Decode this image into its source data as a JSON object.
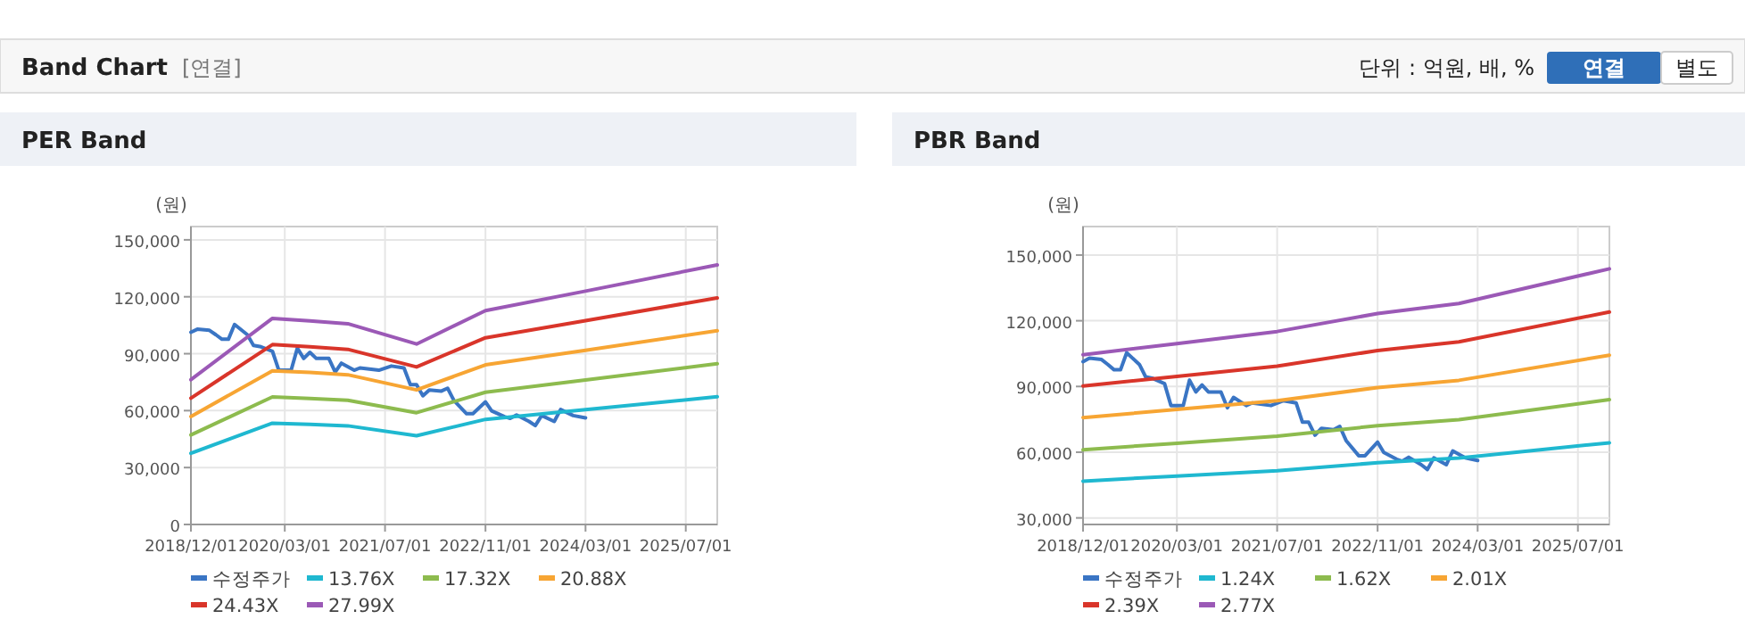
{
  "chart_data": [
    {
      "type": "other",
      "title": "Band Chart",
      "annotations": [
        "[연결]",
        "단위 : 억원, 배, %",
        "연결",
        "별도"
      ]
    },
    {
      "type": "line",
      "title": "PER Band",
      "ylabel": "(원)",
      "grid": true,
      "legend": "bottom",
      "xlim": [
        "2018-12-01",
        "2025-12-01"
      ],
      "ylim": [
        0,
        157000
      ],
      "xticks": [
        {
          "value": "2018-12-01",
          "label": "2018/12/01"
        },
        {
          "value": "2020-03-01",
          "label": "2020/03/01"
        },
        {
          "value": "2021-07-01",
          "label": "2021/07/01"
        },
        {
          "value": "2022-11-01",
          "label": "2022/11/01"
        },
        {
          "value": "2024-03-01",
          "label": "2024/03/01"
        },
        {
          "value": "2025-07-01",
          "label": "2025/07/01"
        }
      ],
      "yticks": [
        0,
        {
          "value": 30000,
          "label": "30,000"
        },
        {
          "value": 60000,
          "label": "60,000"
        },
        {
          "value": 90000,
          "label": "90,000"
        },
        {
          "value": 120000,
          "label": "120,000"
        },
        {
          "value": 150000,
          "label": "150,000"
        }
      ],
      "series": [
        {
          "name": "수정주가",
          "color": "#3a75c4",
          "x": [
            "2018-12",
            "2019-01",
            "2019-03",
            "2019-04",
            "2019-05",
            "2019-06",
            "2019-07",
            "2019-09",
            "2019-10",
            "2019-11",
            "2020-01",
            "2020-02",
            "2020-04",
            "2020-05",
            "2020-06",
            "2020-07",
            "2020-08",
            "2020-10",
            "2020-11",
            "2020-12",
            "2021-02",
            "2021-03",
            "2021-06",
            "2021-08",
            "2021-10",
            "2021-11",
            "2021-12",
            "2022-01",
            "2022-02",
            "2022-04",
            "2022-05",
            "2022-06",
            "2022-08",
            "2022-09",
            "2022-11",
            "2022-12",
            "2023-02",
            "2023-03",
            "2023-04",
            "2023-06",
            "2023-07",
            "2023-08",
            "2023-10",
            "2023-11",
            "2024-01",
            "2024-03"
          ],
          "values": [
            101300,
            102900,
            102300,
            100000,
            97600,
            97600,
            105400,
            100000,
            94400,
            93800,
            91300,
            81300,
            81300,
            92900,
            87500,
            90700,
            87500,
            87500,
            80300,
            85000,
            81300,
            82500,
            81300,
            83500,
            82500,
            73700,
            73700,
            67800,
            70900,
            70300,
            71800,
            65300,
            58400,
            58400,
            64600,
            59900,
            56800,
            55900,
            57700,
            54300,
            52100,
            57400,
            54300,
            60600,
            57400,
            56200
          ]
        },
        {
          "name": "13.76X",
          "color": "#1fb8d0",
          "x": [
            "2018-12-01",
            "2020-01-01",
            "2020-07-01",
            "2021-01-01",
            "2021-12-01",
            "2022-11-01",
            "2024-03-01",
            "2025-12-01"
          ],
          "values": [
            37500,
            53400,
            52800,
            52000,
            46800,
            55400,
            60500,
            67300
          ]
        },
        {
          "name": "17.32X",
          "color": "#8dbb4e",
          "x": [
            "2018-12-01",
            "2020-01-01",
            "2020-07-01",
            "2021-01-01",
            "2021-12-01",
            "2022-11-01",
            "2024-03-01",
            "2025-12-01"
          ],
          "values": [
            47200,
            67200,
            66400,
            65500,
            58900,
            69700,
            76100,
            84700
          ]
        },
        {
          "name": "20.88X",
          "color": "#f7a533",
          "x": [
            "2018-12-01",
            "2020-01-01",
            "2020-07-01",
            "2021-01-01",
            "2021-12-01",
            "2022-11-01",
            "2024-03-01",
            "2025-12-01"
          ],
          "values": [
            56900,
            81000,
            80100,
            78900,
            70900,
            84100,
            91800,
            102100
          ]
        },
        {
          "name": "24.43X",
          "color": "#d9352a",
          "x": [
            "2018-12-01",
            "2020-01-01",
            "2020-07-01",
            "2021-01-01",
            "2021-12-01",
            "2022-11-01",
            "2024-03-01",
            "2025-12-01"
          ],
          "values": [
            66600,
            94800,
            93700,
            92300,
            83000,
            98400,
            107400,
            119400
          ]
        },
        {
          "name": "27.99X",
          "color": "#9b59b6",
          "x": [
            "2018-12-01",
            "2020-01-01",
            "2020-07-01",
            "2021-01-01",
            "2021-12-01",
            "2022-11-01",
            "2024-03-01",
            "2025-12-01"
          ],
          "values": [
            76300,
            108600,
            107300,
            105800,
            95100,
            112700,
            123000,
            136800
          ]
        }
      ]
    },
    {
      "type": "line",
      "title": "PBR Band",
      "ylabel": "(원)",
      "grid": true,
      "legend": "bottom",
      "xlim": [
        "2018-12-01",
        "2025-12-01"
      ],
      "ylim": [
        27000,
        163000
      ],
      "xticks": [
        {
          "value": "2018-12-01",
          "label": "2018/12/01"
        },
        {
          "value": "2020-03-01",
          "label": "2020/03/01"
        },
        {
          "value": "2021-07-01",
          "label": "2021/07/01"
        },
        {
          "value": "2022-11-01",
          "label": "2022/11/01"
        },
        {
          "value": "2024-03-01",
          "label": "2024/03/01"
        },
        {
          "value": "2025-07-01",
          "label": "2025/07/01"
        }
      ],
      "yticks": [
        {
          "value": 30000,
          "label": "30,000"
        },
        {
          "value": 60000,
          "label": "60,000"
        },
        {
          "value": 90000,
          "label": "90,000"
        },
        {
          "value": 120000,
          "label": "120,000"
        },
        {
          "value": 150000,
          "label": "150,000"
        }
      ],
      "series": [
        {
          "name": "수정주가",
          "color": "#3a75c4",
          "x": [
            "2018-12",
            "2019-01",
            "2019-03",
            "2019-04",
            "2019-05",
            "2019-06",
            "2019-07",
            "2019-09",
            "2019-10",
            "2019-11",
            "2020-01",
            "2020-02",
            "2020-04",
            "2020-05",
            "2020-06",
            "2020-07",
            "2020-08",
            "2020-10",
            "2020-11",
            "2020-12",
            "2021-02",
            "2021-03",
            "2021-06",
            "2021-08",
            "2021-10",
            "2021-11",
            "2021-12",
            "2022-01",
            "2022-02",
            "2022-04",
            "2022-05",
            "2022-06",
            "2022-08",
            "2022-09",
            "2022-11",
            "2022-12",
            "2023-02",
            "2023-03",
            "2023-04",
            "2023-06",
            "2023-07",
            "2023-08",
            "2023-10",
            "2023-11",
            "2024-01",
            "2024-03"
          ],
          "values": [
            101300,
            102900,
            102300,
            100000,
            97600,
            97600,
            105400,
            100000,
            94400,
            93800,
            91300,
            81300,
            81300,
            92900,
            87500,
            90700,
            87500,
            87500,
            80300,
            85000,
            81300,
            82500,
            81300,
            83500,
            82500,
            73700,
            73700,
            67800,
            70900,
            70300,
            71800,
            65300,
            58400,
            58400,
            64600,
            59900,
            56800,
            55900,
            57700,
            54300,
            52100,
            57400,
            54300,
            60600,
            57400,
            56200
          ]
        },
        {
          "name": "1.24X",
          "color": "#1fb8d0",
          "x": [
            "2018-12-01",
            "2020-03-01",
            "2021-07-01",
            "2022-11-01",
            "2023-12-01",
            "2025-12-01"
          ],
          "values": [
            46800,
            49100,
            51500,
            55200,
            57300,
            64300
          ]
        },
        {
          "name": "1.62X",
          "color": "#8dbb4e",
          "x": [
            "2018-12-01",
            "2020-03-01",
            "2021-07-01",
            "2022-11-01",
            "2023-12-01",
            "2025-12-01"
          ],
          "values": [
            61100,
            64100,
            67300,
            72100,
            74800,
            84000
          ]
        },
        {
          "name": "2.01X",
          "color": "#f7a533",
          "x": [
            "2018-12-01",
            "2020-03-01",
            "2021-07-01",
            "2022-11-01",
            "2023-12-01",
            "2025-12-01"
          ],
          "values": [
            75800,
            79500,
            83500,
            89500,
            92800,
            104300
          ]
        },
        {
          "name": "2.39X",
          "color": "#d9352a",
          "x": [
            "2018-12-01",
            "2020-03-01",
            "2021-07-01",
            "2022-11-01",
            "2023-12-01",
            "2025-12-01"
          ],
          "values": [
            90200,
            94600,
            99300,
            106400,
            110400,
            124000
          ]
        },
        {
          "name": "2.77X",
          "color": "#9b59b6",
          "x": [
            "2018-12-01",
            "2020-03-01",
            "2021-07-01",
            "2022-11-01",
            "2023-12-01",
            "2025-12-01"
          ],
          "values": [
            104500,
            109600,
            115100,
            123300,
            127900,
            143700
          ]
        }
      ]
    }
  ]
}
